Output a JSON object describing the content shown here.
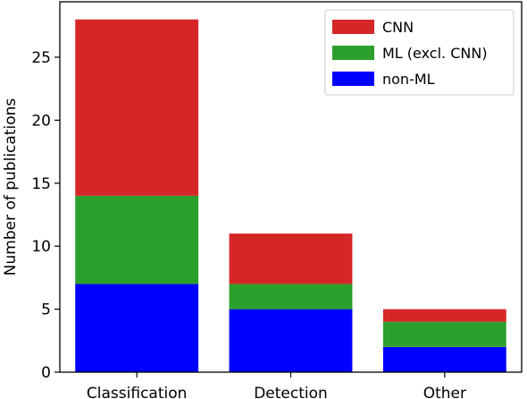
{
  "chart_data": {
    "type": "bar",
    "stacked": true,
    "categories": [
      "Classification",
      "Detection",
      "Other"
    ],
    "series": [
      {
        "name": "non-ML",
        "values": [
          7,
          5,
          2
        ],
        "color": "#0000ff"
      },
      {
        "name": "ML (excl. CNN)",
        "values": [
          7,
          2,
          2
        ],
        "color": "#2ca02c"
      },
      {
        "name": "CNN",
        "values": [
          14,
          4,
          1
        ],
        "color": "#d62728"
      }
    ],
    "legend_order": [
      "CNN",
      "ML (excl. CNN)",
      "non-ML"
    ],
    "xlabel": "",
    "ylabel": "Number of publications",
    "ylim": [
      0,
      29.4
    ],
    "yticks": [
      0,
      5,
      10,
      15,
      20,
      25
    ],
    "grid": false,
    "legend_position": "top-right"
  }
}
